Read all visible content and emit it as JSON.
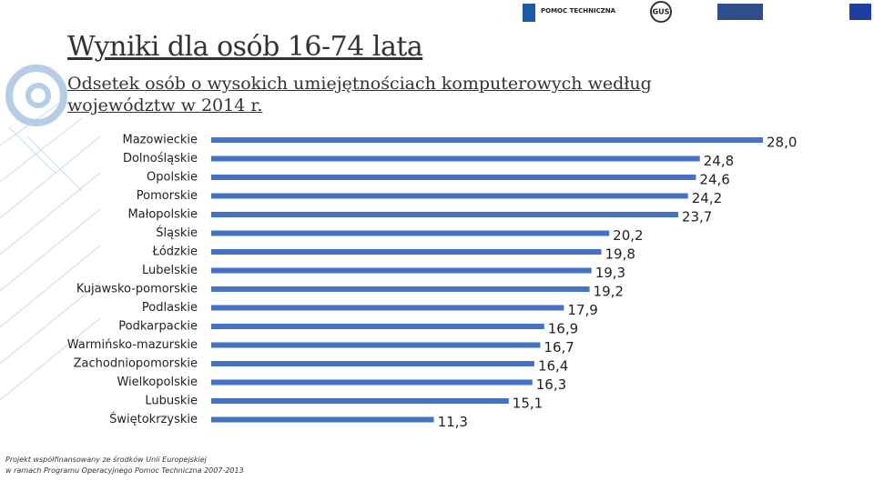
{
  "chart_data": {
    "type": "bar",
    "orientation": "horizontal",
    "title": "Wyniki dla osób 16-74 lata",
    "subtitle": "Odsetek osób o wysokich umiejętnościach komputerowych według województw w 2014 r.",
    "categories": [
      "Mazowieckie",
      "Dolnośląskie",
      "Opolskie",
      "Pomorskie",
      "Małopolskie",
      "Śląskie",
      "Łódzkie",
      "Lubelskie",
      "Kujawsko-pomorskie",
      "Podlaskie",
      "Podkarpackie",
      "Warmińsko-mazurskie",
      "Zachodniopomorskie",
      "Wielkopolskie",
      "Lubuskie",
      "Świętokrzyskie"
    ],
    "values": [
      28.0,
      24.8,
      24.6,
      24.2,
      23.7,
      20.2,
      19.8,
      19.3,
      19.2,
      17.9,
      16.9,
      16.7,
      16.4,
      16.3,
      15.1,
      11.3
    ],
    "value_labels": [
      "28,0",
      "24,8",
      "24,6",
      "24,2",
      "23,7",
      "20,2",
      "19,8",
      "19,3",
      "19,2",
      "17,9",
      "16,9",
      "16,7",
      "16,4",
      "16,3",
      "15,1",
      "11,3"
    ],
    "color": "#4472c4"
  },
  "logos": {
    "pomoc": "POMOC TECHNICZNA",
    "gus": "GUS"
  },
  "footer": [
    "Projekt współfinansowany ze środków Unii Europejskiej",
    "w ramach Programu Operacyjnego Pomoc Techniczna 2007-2013"
  ]
}
